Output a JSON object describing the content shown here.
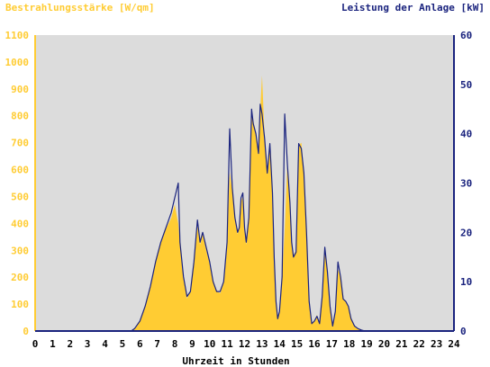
{
  "colors": {
    "background": "#ffffff",
    "plot_background": "#dcdcdc",
    "area_fill": "#ffcc33",
    "line": "#1a237e",
    "left_axis_text": "#ffcc33",
    "right_axis_text": "#1a237e",
    "x_axis_text": "#000000"
  },
  "chart_data": {
    "type": "area",
    "ylabel_left": "Bestrahlungsstärke [W/qm]",
    "ylabel_right": "Leistung der Anlage [kW]",
    "xlabel": "Uhrzeit in Stunden",
    "xlim": [
      0,
      24
    ],
    "ylim_left": [
      0,
      1100
    ],
    "ylim_right": [
      0,
      60
    ],
    "x_ticks": [
      "0",
      "1",
      "2",
      "3",
      "4",
      "5",
      "6",
      "7",
      "8",
      "9",
      "10",
      "11",
      "12",
      "13",
      "14",
      "15",
      "16",
      "17",
      "18",
      "19",
      "20",
      "21",
      "22",
      "23",
      "24"
    ],
    "y_ticks_left": [
      "0",
      "100",
      "200",
      "300",
      "400",
      "500",
      "600",
      "700",
      "800",
      "900",
      "1000",
      "1100"
    ],
    "y_ticks_right": [
      "0",
      "10",
      "20",
      "30",
      "40",
      "50",
      "60"
    ],
    "grid": false,
    "series": [
      {
        "name": "Bestrahlungsstärke [W/qm]",
        "axis": "left",
        "style": "area",
        "x": [
          0,
          5.5,
          5.7,
          6.0,
          6.3,
          6.6,
          6.9,
          7.2,
          7.5,
          7.8,
          8.0,
          8.2,
          8.3,
          8.5,
          8.7,
          8.9,
          9.1,
          9.3,
          9.45,
          9.6,
          9.8,
          10.0,
          10.2,
          10.4,
          10.6,
          10.8,
          11.0,
          11.15,
          11.3,
          11.45,
          11.6,
          11.7,
          11.8,
          11.9,
          12.0,
          12.1,
          12.25,
          12.4,
          12.5,
          12.65,
          12.8,
          12.9,
          13.0,
          13.15,
          13.3,
          13.45,
          13.6,
          13.7,
          13.8,
          13.9,
          14.0,
          14.15,
          14.3,
          14.45,
          14.6,
          14.7,
          14.8,
          14.95,
          15.1,
          15.25,
          15.4,
          15.55,
          15.7,
          15.85,
          16.0,
          16.15,
          16.3,
          16.45,
          16.6,
          16.75,
          16.9,
          17.05,
          17.2,
          17.35,
          17.5,
          17.65,
          17.8,
          17.95,
          18.1,
          18.3,
          18.5,
          18.7,
          18.9,
          19.05,
          19.2,
          24
        ],
        "y": [
          0,
          0,
          10,
          40,
          90,
          170,
          260,
          330,
          380,
          420,
          470,
          400,
          320,
          200,
          120,
          150,
          250,
          390,
          320,
          360,
          300,
          250,
          190,
          150,
          140,
          180,
          330,
          590,
          520,
          420,
          360,
          380,
          480,
          500,
          380,
          320,
          420,
          820,
          780,
          740,
          660,
          820,
          950,
          720,
          600,
          700,
          520,
          260,
          120,
          50,
          70,
          200,
          380,
          620,
          480,
          330,
          280,
          300,
          690,
          700,
          600,
          380,
          120,
          30,
          40,
          60,
          30,
          120,
          290,
          230,
          90,
          20,
          80,
          230,
          200,
          120,
          110,
          90,
          50,
          20,
          10,
          5,
          0,
          0,
          0,
          0
        ]
      },
      {
        "name": "Leistung der Anlage [kW]",
        "axis": "right",
        "style": "line",
        "x": [
          0,
          5.5,
          5.7,
          6.0,
          6.3,
          6.6,
          6.9,
          7.2,
          7.5,
          7.8,
          8.0,
          8.2,
          8.3,
          8.5,
          8.7,
          8.9,
          9.1,
          9.3,
          9.45,
          9.6,
          9.8,
          10.0,
          10.2,
          10.4,
          10.6,
          10.8,
          11.0,
          11.15,
          11.3,
          11.45,
          11.6,
          11.7,
          11.8,
          11.9,
          12.0,
          12.1,
          12.25,
          12.4,
          12.5,
          12.65,
          12.8,
          12.9,
          13.0,
          13.15,
          13.3,
          13.45,
          13.6,
          13.7,
          13.8,
          13.9,
          14.0,
          14.15,
          14.3,
          14.45,
          14.6,
          14.7,
          14.8,
          14.95,
          15.1,
          15.25,
          15.4,
          15.55,
          15.7,
          15.85,
          16.0,
          16.15,
          16.3,
          16.45,
          16.6,
          16.75,
          16.9,
          17.05,
          17.2,
          17.35,
          17.5,
          17.65,
          17.8,
          17.95,
          18.1,
          18.3,
          18.5,
          18.7,
          18.9,
          19.05,
          19.2,
          24
        ],
        "y": [
          0,
          0,
          0.5,
          2,
          5,
          9,
          14,
          18,
          21,
          24,
          27,
          30,
          18,
          11,
          7,
          8,
          14,
          22.5,
          18,
          20,
          17,
          14,
          10,
          8,
          8,
          10,
          18,
          41,
          29,
          23,
          20,
          21,
          27,
          28,
          21,
          18,
          23,
          45,
          42,
          40,
          36,
          46,
          44,
          39,
          32,
          38,
          28,
          15,
          6,
          2.5,
          4,
          11,
          44,
          34,
          26,
          18,
          15,
          16,
          38,
          37,
          32,
          20,
          6,
          1.5,
          2,
          3,
          1.5,
          7,
          17,
          12,
          5,
          1,
          4,
          14,
          11,
          6.5,
          6,
          5,
          2.5,
          1,
          0.5,
          0.2,
          0,
          0,
          0,
          0
        ]
      }
    ]
  }
}
